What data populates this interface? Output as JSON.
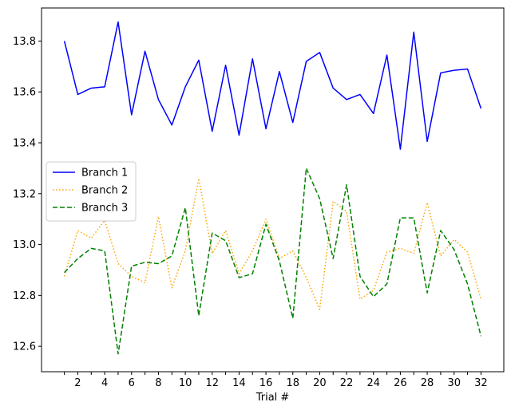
{
  "chart_data": {
    "type": "line",
    "title": "",
    "xlabel": "Trial #",
    "ylabel": "",
    "x": [
      1,
      2,
      3,
      4,
      5,
      6,
      7,
      8,
      9,
      10,
      11,
      12,
      13,
      14,
      15,
      16,
      17,
      18,
      19,
      20,
      21,
      22,
      23,
      24,
      25,
      26,
      27,
      28,
      29,
      30,
      31,
      32
    ],
    "xticks": [
      2,
      4,
      6,
      8,
      10,
      12,
      14,
      16,
      18,
      20,
      22,
      24,
      26,
      28,
      30,
      32
    ],
    "xtick_labels": [
      "2",
      "4",
      "6",
      "8",
      "10",
      "12",
      "14",
      "16",
      "18",
      "20",
      "22",
      "24",
      "26",
      "28",
      "30",
      "32"
    ],
    "xlim": [
      -0.7,
      33.7
    ],
    "ylim": [
      12.5,
      13.93
    ],
    "yticks": [
      12.6,
      12.8,
      13.0,
      13.2,
      13.4,
      13.6,
      13.8
    ],
    "ytick_labels": [
      "12.6",
      "12.8",
      "13.0",
      "13.2",
      "13.4",
      "13.6",
      "13.8"
    ],
    "grid": false,
    "legend": {
      "position": "center-left"
    },
    "series": [
      {
        "name": "Branch 1",
        "color": "#0000ff",
        "style": "solid",
        "values": [
          13.8,
          13.59,
          13.615,
          13.62,
          13.875,
          13.51,
          13.76,
          13.57,
          13.47,
          13.62,
          13.725,
          13.445,
          13.705,
          13.43,
          13.73,
          13.455,
          13.68,
          13.48,
          13.72,
          13.755,
          13.615,
          13.57,
          13.59,
          13.515,
          13.745,
          13.375,
          13.835,
          13.405,
          13.675,
          13.685,
          13.69,
          13.535
        ]
      },
      {
        "name": "Branch 2",
        "color": "#ffa500",
        "style": "dotted",
        "values": [
          12.875,
          13.055,
          13.025,
          13.095,
          12.925,
          12.875,
          12.85,
          13.11,
          12.83,
          12.975,
          13.26,
          12.965,
          13.055,
          12.885,
          12.975,
          13.1,
          12.945,
          12.975,
          12.87,
          12.745,
          13.17,
          13.13,
          12.785,
          12.82,
          12.97,
          12.985,
          12.965,
          13.165,
          12.955,
          13.02,
          12.97,
          12.785
        ]
      },
      {
        "name": "Branch 3",
        "color": "#008000",
        "style": "dashed",
        "values": [
          12.89,
          12.945,
          12.985,
          12.975,
          12.57,
          12.915,
          12.93,
          12.925,
          12.955,
          13.145,
          12.72,
          13.045,
          13.015,
          12.87,
          12.885,
          13.08,
          12.935,
          12.71,
          13.3,
          13.18,
          12.945,
          13.235,
          12.875,
          12.795,
          12.845,
          13.105,
          13.105,
          12.81,
          13.055,
          12.98,
          12.845,
          12.64
        ]
      }
    ]
  }
}
